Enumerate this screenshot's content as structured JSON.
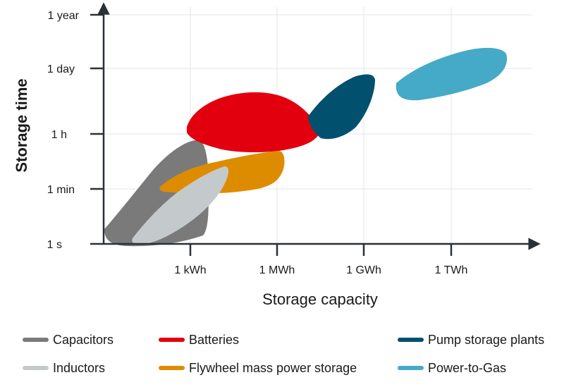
{
  "chart_data": {
    "type": "area",
    "title": "",
    "xlabel": "Storage capacity",
    "ylabel": "Storage time",
    "x_ticks": [
      "1 kWh",
      "1 MWh",
      "1 GWh",
      "1 TWh"
    ],
    "y_ticks": [
      "1 s",
      "1 min",
      "1 h",
      "1 day",
      "1 year"
    ],
    "grid": true,
    "legend_position": "bottom",
    "series": [
      {
        "name": "Capacitors",
        "color": "#7a7a7a",
        "x_range": [
          "< 1 kWh",
          "1 kWh"
        ],
        "y_range": [
          "1 s",
          "1 h"
        ]
      },
      {
        "name": "Inductors",
        "color": "#c4c9cc",
        "x_range": [
          "< 1 kWh",
          "1 kWh"
        ],
        "y_range": [
          "1 s",
          "1 min"
        ]
      },
      {
        "name": "Batteries",
        "color": "#e2000f",
        "x_range": [
          "1 kWh",
          "1 GWh"
        ],
        "y_range": [
          "1 h",
          "1 day"
        ]
      },
      {
        "name": "Flywheel mass power storage",
        "color": "#dd8c00",
        "x_range": [
          "1 kWh",
          "1 MWh"
        ],
        "y_range": [
          "1 min",
          "1 h"
        ]
      },
      {
        "name": "Pump storage plants",
        "color": "#00506e",
        "x_range": [
          "1 GWh",
          "1 GWh"
        ],
        "y_range": [
          "1 h",
          "1 day"
        ]
      },
      {
        "name": "Power-to-Gas",
        "color": "#45aac8",
        "x_range": [
          "1 TWh",
          "> 1 TWh"
        ],
        "y_range": [
          "1 h",
          "1 day"
        ]
      }
    ]
  }
}
